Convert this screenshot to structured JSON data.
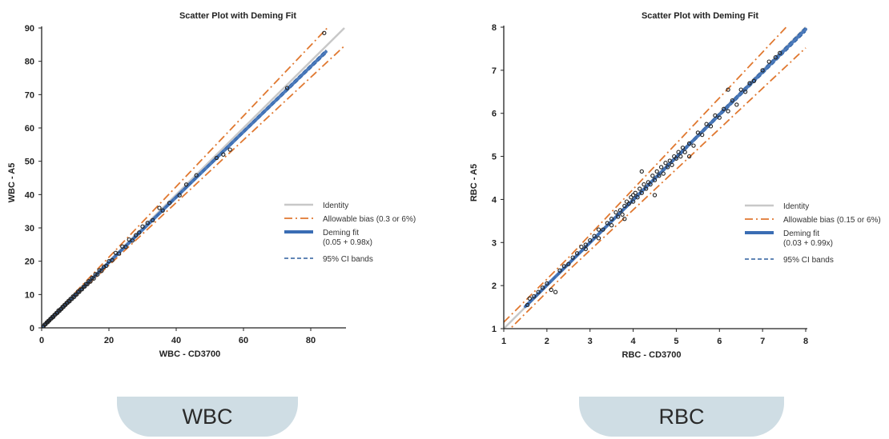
{
  "labels": {
    "wbc_tab": "WBC",
    "rbc_tab": "RBC"
  },
  "colors": {
    "identity": "#c8c8c8",
    "bias": "#e07830",
    "fit": "#3a6db4",
    "ci": "#2d5f9e",
    "points": "#222222",
    "tab_bg": "#cfdde4"
  },
  "chart_data": [
    {
      "type": "scatter",
      "title": "Scatter Plot with Deming Fit",
      "xlabel": "WBC  - CD3700",
      "ylabel": "WBC  - A5",
      "xlim": [
        0,
        90
      ],
      "ylim": [
        0,
        90
      ],
      "xticks": [
        0,
        20,
        40,
        60,
        80
      ],
      "yticks": [
        0,
        10,
        20,
        30,
        40,
        50,
        60,
        70,
        80,
        90
      ],
      "deming": {
        "intercept": 0.05,
        "slope": 0.98
      },
      "bias": {
        "abs": 0.3,
        "pct": 6
      },
      "fit_range": [
        0,
        84.5
      ],
      "legend": [
        {
          "key": "identity",
          "label": "Identity",
          "sub": ""
        },
        {
          "key": "bias",
          "label": "Allowable bias (0.3 or 6%)",
          "sub": ""
        },
        {
          "key": "fit",
          "label": "Deming fit",
          "sub": "(0.05 + 0.98x)"
        },
        {
          "key": "ci",
          "label": "95% CI bands",
          "sub": ""
        }
      ],
      "points": [
        [
          0.3,
          0.3
        ],
        [
          0.6,
          0.5
        ],
        [
          0.9,
          1.0
        ],
        [
          1.2,
          1.1
        ],
        [
          1.5,
          1.6
        ],
        [
          1.8,
          1.7
        ],
        [
          2.0,
          2.1
        ],
        [
          2.3,
          2.2
        ],
        [
          2.6,
          2.7
        ],
        [
          2.9,
          2.8
        ],
        [
          3.2,
          3.3
        ],
        [
          3.5,
          3.3
        ],
        [
          3.8,
          3.9
        ],
        [
          4.1,
          4.0
        ],
        [
          4.4,
          4.5
        ],
        [
          4.7,
          4.5
        ],
        [
          5.0,
          5.2
        ],
        [
          5.3,
          5.1
        ],
        [
          5.6,
          5.6
        ],
        [
          5.9,
          5.7
        ],
        [
          6.2,
          6.3
        ],
        [
          6.5,
          6.3
        ],
        [
          6.8,
          6.9
        ],
        [
          7.1,
          6.9
        ],
        [
          7.4,
          7.5
        ],
        [
          7.7,
          7.5
        ],
        [
          8.0,
          8.1
        ],
        [
          8.3,
          8.0
        ],
        [
          8.6,
          8.7
        ],
        [
          9.0,
          8.7
        ],
        [
          9.3,
          9.4
        ],
        [
          9.7,
          9.3
        ],
        [
          10.0,
          10.0
        ],
        [
          10.4,
          10.0
        ],
        [
          10.8,
          10.9
        ],
        [
          11.2,
          10.8
        ],
        [
          11.6,
          11.5
        ],
        [
          12.0,
          11.6
        ],
        [
          12.4,
          12.3
        ],
        [
          12.8,
          12.4
        ],
        [
          13.2,
          13.2
        ],
        [
          13.6,
          13.1
        ],
        [
          14.0,
          14.0
        ],
        [
          14.5,
          13.9
        ],
        [
          15.0,
          15.0
        ],
        [
          15.5,
          14.8
        ],
        [
          16.0,
          16.1
        ],
        [
          16.6,
          16.0
        ],
        [
          17.2,
          17.3
        ],
        [
          17.8,
          17.1
        ],
        [
          18.5,
          18.3
        ],
        [
          19.2,
          18.6
        ],
        [
          20.0,
          20.0
        ],
        [
          21.0,
          20.3
        ],
        [
          22.0,
          22.5
        ],
        [
          23.0,
          22.3
        ],
        [
          24.0,
          24.4
        ],
        [
          25.0,
          24.3
        ],
        [
          26.0,
          26.5
        ],
        [
          27.0,
          26.2
        ],
        [
          28.0,
          27.8
        ],
        [
          29.0,
          28.6
        ],
        [
          30.0,
          30.4
        ],
        [
          31.5,
          31.5
        ],
        [
          33.0,
          32.3
        ],
        [
          35.0,
          36.0
        ],
        [
          36.0,
          35.2
        ],
        [
          38.0,
          37.5
        ],
        [
          41.0,
          39.8
        ],
        [
          43.0,
          43.0
        ],
        [
          46.0,
          45.8
        ],
        [
          52.0,
          51.0
        ],
        [
          54.0,
          52.0
        ],
        [
          56.0,
          53.5
        ],
        [
          73.0,
          72.0
        ],
        [
          84.0,
          88.5
        ]
      ]
    },
    {
      "type": "scatter",
      "title": "Scatter Plot with Deming Fit",
      "xlabel": "RBC   - CD3700",
      "ylabel": "RBC  - A5",
      "xlim": [
        1,
        8
      ],
      "ylim": [
        1,
        8
      ],
      "xticks": [
        1,
        2,
        3,
        4,
        5,
        6,
        7,
        8
      ],
      "yticks": [
        1,
        2,
        3,
        4,
        5,
        6,
        7,
        8
      ],
      "deming": {
        "intercept": 0.03,
        "slope": 0.99
      },
      "bias": {
        "abs": 0.15,
        "pct": 6
      },
      "fit_range": [
        1.5,
        8.0
      ],
      "legend": [
        {
          "key": "identity",
          "label": "Identity",
          "sub": ""
        },
        {
          "key": "bias",
          "label": "Allowable bias (0.15 or 6%)",
          "sub": ""
        },
        {
          "key": "fit",
          "label": "Deming fit",
          "sub": "(0.03 + 0.99x)"
        },
        {
          "key": "ci",
          "label": "95% CI bands",
          "sub": ""
        }
      ],
      "points": [
        [
          1.55,
          1.55
        ],
        [
          1.6,
          1.7
        ],
        [
          1.7,
          1.75
        ],
        [
          1.8,
          1.85
        ],
        [
          1.9,
          1.95
        ],
        [
          2.0,
          2.05
        ],
        [
          2.1,
          1.9
        ],
        [
          2.2,
          1.85
        ],
        [
          2.3,
          2.35
        ],
        [
          2.4,
          2.45
        ],
        [
          2.5,
          2.5
        ],
        [
          2.6,
          2.65
        ],
        [
          2.7,
          2.75
        ],
        [
          2.8,
          2.9
        ],
        [
          2.9,
          2.95
        ],
        [
          2.9,
          2.85
        ],
        [
          3.0,
          3.05
        ],
        [
          3.1,
          3.15
        ],
        [
          3.2,
          3.3
        ],
        [
          3.2,
          3.1
        ],
        [
          3.3,
          3.3
        ],
        [
          3.4,
          3.45
        ],
        [
          3.5,
          3.55
        ],
        [
          3.5,
          3.4
        ],
        [
          3.6,
          3.7
        ],
        [
          3.65,
          3.6
        ],
        [
          3.7,
          3.75
        ],
        [
          3.75,
          3.65
        ],
        [
          3.8,
          3.85
        ],
        [
          3.85,
          3.95
        ],
        [
          3.9,
          3.9
        ],
        [
          3.95,
          4.05
        ],
        [
          4.0,
          4.1
        ],
        [
          4.0,
          3.95
        ],
        [
          4.05,
          4.15
        ],
        [
          4.1,
          4.05
        ],
        [
          4.15,
          4.25
        ],
        [
          4.2,
          4.15
        ],
        [
          4.25,
          4.35
        ],
        [
          4.3,
          4.25
        ],
        [
          4.35,
          4.4
        ],
        [
          4.4,
          4.35
        ],
        [
          4.45,
          4.55
        ],
        [
          4.5,
          4.45
        ],
        [
          4.55,
          4.65
        ],
        [
          4.6,
          4.55
        ],
        [
          4.65,
          4.75
        ],
        [
          4.7,
          4.6
        ],
        [
          4.75,
          4.85
        ],
        [
          4.8,
          4.75
        ],
        [
          4.85,
          4.9
        ],
        [
          4.9,
          4.8
        ],
        [
          4.95,
          5.0
        ],
        [
          5.0,
          4.95
        ],
        [
          5.05,
          5.1
        ],
        [
          5.1,
          5.0
        ],
        [
          5.15,
          5.2
        ],
        [
          5.2,
          5.1
        ],
        [
          5.3,
          5.3
        ],
        [
          5.4,
          5.25
        ],
        [
          5.5,
          5.55
        ],
        [
          5.6,
          5.5
        ],
        [
          5.7,
          5.75
        ],
        [
          5.8,
          5.7
        ],
        [
          5.9,
          5.95
        ],
        [
          6.0,
          5.9
        ],
        [
          6.1,
          6.1
        ],
        [
          6.2,
          6.05
        ],
        [
          6.3,
          6.3
        ],
        [
          6.4,
          6.2
        ],
        [
          6.5,
          6.55
        ],
        [
          6.6,
          6.5
        ],
        [
          6.7,
          6.7
        ],
        [
          6.8,
          6.75
        ],
        [
          7.0,
          7.0
        ],
        [
          7.15,
          7.2
        ],
        [
          7.3,
          7.3
        ],
        [
          7.4,
          7.4
        ],
        [
          4.5,
          4.1
        ],
        [
          4.2,
          4.65
        ],
        [
          3.8,
          3.55
        ],
        [
          5.3,
          5.0
        ],
        [
          6.2,
          6.55
        ]
      ]
    }
  ]
}
